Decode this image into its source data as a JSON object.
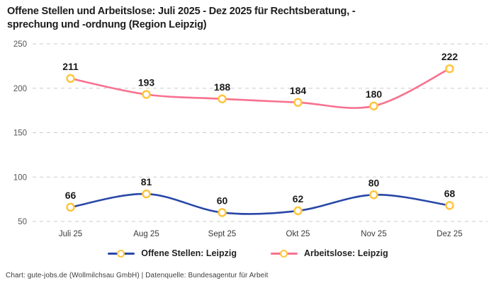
{
  "title": {
    "full": "Offene Stellen und Arbeitslose: Juli 2025 - Dez 2025 für Rechtsberatung, -sprechung und -ordnung (Region Leipzig)",
    "line1": "Offene Stellen und Arbeitslose: Juli 2025 - Dez 2025 für Rechtsberatung, -",
    "line2": "sprechung und -ordnung (Region Leipzig)"
  },
  "footer": "Chart: gute-jobs.de (Wollmilchsau GmbH) | Datenquelle: Bundesagentur für Arbeit",
  "colors": {
    "offene": "#2847a8",
    "arbeitslose": "#f8718f",
    "marker": "#ffc53d",
    "grid": "#cbcbcb",
    "y_tick": "#555555",
    "x_tick": "#3a3a3a",
    "data_label": "#1b1b1b"
  },
  "legend": {
    "items": [
      {
        "label": "Offene Stellen: Leipzig",
        "color_key": "offene"
      },
      {
        "label": "Arbeitslose: Leipzig",
        "color_key": "arbeitslose"
      }
    ]
  },
  "chart_data": {
    "type": "line",
    "categories": [
      "Juli 25",
      "Aug 25",
      "Sept 25",
      "Okt 25",
      "Nov 25",
      "Dez 25"
    ],
    "series": [
      {
        "name": "Offene Stellen: Leipzig",
        "values": [
          66,
          81,
          60,
          62,
          80,
          68
        ],
        "color_key": "offene"
      },
      {
        "name": "Arbeitslose: Leipzig",
        "values": [
          211,
          193,
          188,
          184,
          180,
          222
        ],
        "color_key": "arbeitslose"
      }
    ],
    "ylim": [
      50,
      250
    ],
    "yticks": [
      50,
      100,
      150,
      200,
      250
    ],
    "grid": "horizontal-dashed",
    "legend_position": "bottom",
    "marker": "open-circle-gold",
    "data_labels": true,
    "smooth": true
  }
}
